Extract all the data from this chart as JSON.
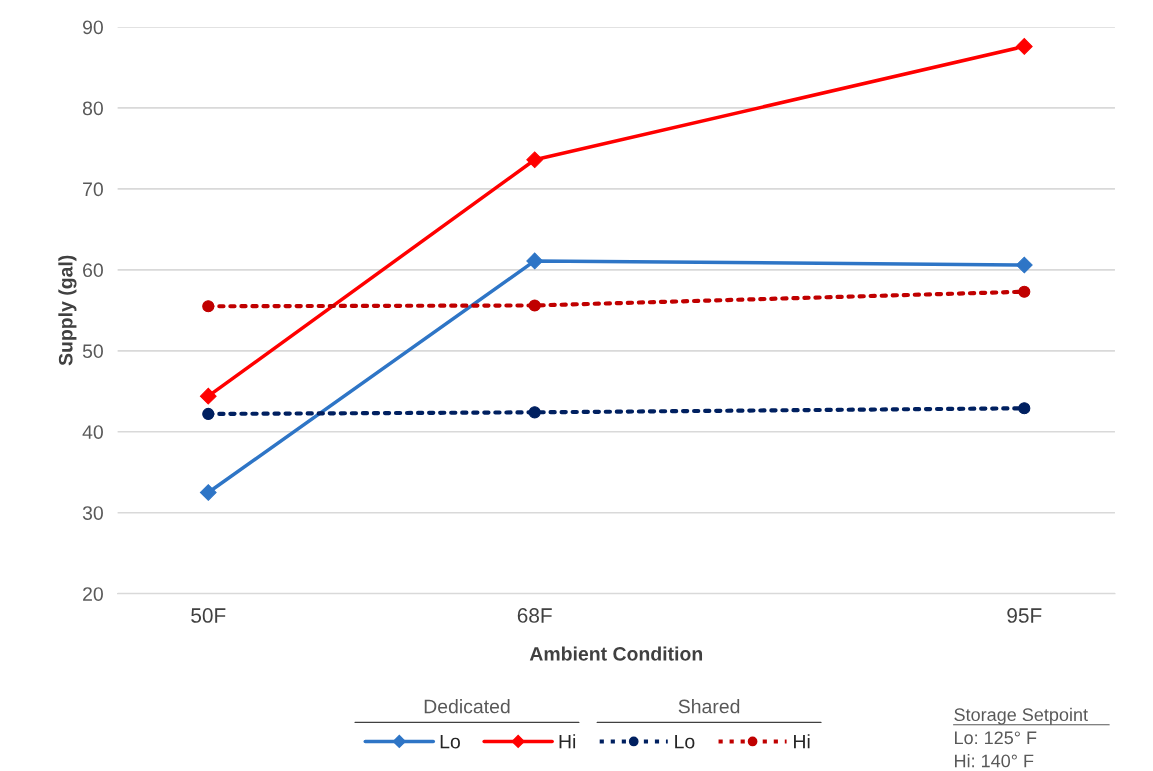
{
  "chart_data": {
    "type": "line",
    "xlabel": "Ambient Condition",
    "ylabel": "Supply (gal)",
    "x": [
      50,
      68,
      95
    ],
    "xlim": [
      45,
      100
    ],
    "xticks": [
      {
        "value": 50,
        "label": "50F"
      },
      {
        "value": 68,
        "label": "68F"
      },
      {
        "value": 95,
        "label": "95F"
      }
    ],
    "ylim": [
      20,
      90
    ],
    "yticks": [
      20,
      30,
      40,
      50,
      60,
      70,
      80,
      90
    ],
    "grid": "y",
    "legend": "bottom",
    "series": [
      {
        "name": "Lo",
        "color": "#2e75c6",
        "values": [
          32.5,
          61.1,
          60.6
        ],
        "marker": "diamond",
        "line_style": "solid"
      },
      {
        "name": "Hi",
        "color": "#ff0000",
        "values": [
          44.4,
          73.6,
          87.6
        ],
        "marker": "diamond",
        "line_style": "solid"
      },
      {
        "name": "Lo",
        "color": "#002060",
        "values": [
          42.2,
          42.4,
          42.9
        ],
        "marker": "circle",
        "line_style": "dotted"
      },
      {
        "name": "Hi",
        "color": "#c00000",
        "values": [
          55.5,
          55.6,
          57.3
        ],
        "marker": "circle",
        "line_style": "dotted"
      }
    ],
    "annotations": [
      "Dedicated",
      "Shared",
      "Storage Setpoint",
      "Lo: 125° F",
      "Hi: 140° F"
    ]
  }
}
